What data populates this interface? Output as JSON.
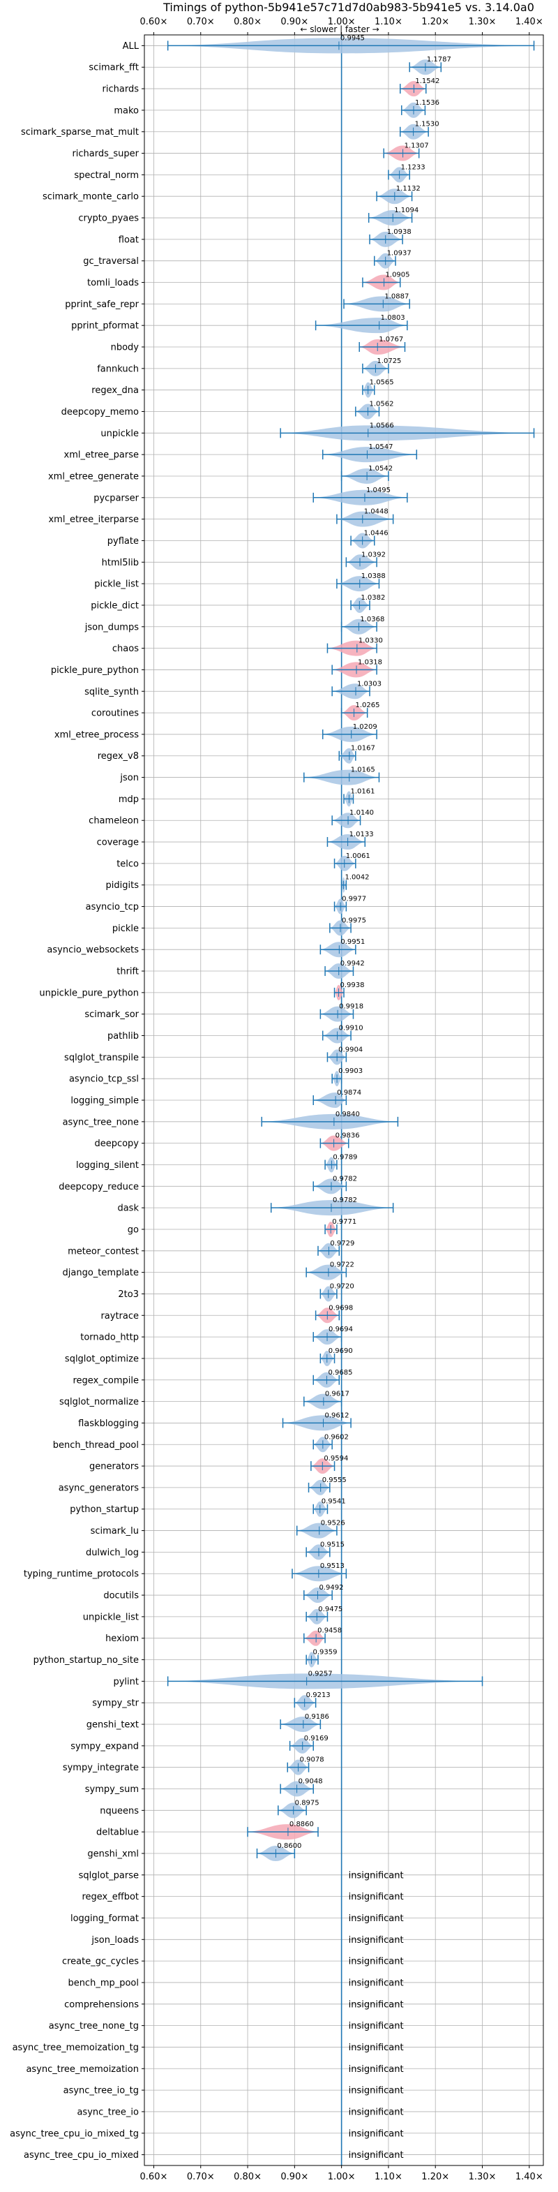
{
  "chart_data": {
    "type": "violin",
    "title": "Timings of python-5b941e57c71d7d0ab983-5b941e5 vs. 3.14.0a0",
    "direction_label": "← slower | faster →",
    "xlim": [
      0.58,
      1.43
    ],
    "xticks": [
      0.6,
      0.7,
      0.8,
      0.9,
      1.0,
      1.1,
      1.2,
      1.3,
      1.4
    ],
    "xtick_labels": [
      "0.60×",
      "0.70×",
      "0.80×",
      "0.90×",
      "1.00×",
      "1.10×",
      "1.20×",
      "1.30×",
      "1.40×"
    ],
    "reference_line": 1.0,
    "insignificant_text": "insignificant",
    "colors": {
      "normal": "#a8c6e4",
      "highlight": "#f4a7b4",
      "line": "#1f77b4",
      "grid": "#b0b0b0"
    },
    "benchmarks": [
      {
        "name": "ALL",
        "value": 0.9945,
        "label": "0.9945",
        "min": 0.63,
        "max": 1.41,
        "hl": false
      },
      {
        "name": "scimark_fft",
        "value": 1.1787,
        "label": "1.1787",
        "min": 1.145,
        "max": 1.212,
        "hl": false
      },
      {
        "name": "richards",
        "value": 1.1542,
        "label": "1.1542",
        "min": 1.125,
        "max": 1.18,
        "hl": true
      },
      {
        "name": "mako",
        "value": 1.1536,
        "label": "1.1536",
        "min": 1.128,
        "max": 1.178,
        "hl": false
      },
      {
        "name": "scimark_sparse_mat_mult",
        "value": 1.153,
        "label": "1.1530",
        "min": 1.125,
        "max": 1.185,
        "hl": false
      },
      {
        "name": "richards_super",
        "value": 1.1307,
        "label": "1.1307",
        "min": 1.09,
        "max": 1.165,
        "hl": true
      },
      {
        "name": "spectral_norm",
        "value": 1.1233,
        "label": "1.1233",
        "min": 1.1,
        "max": 1.145,
        "hl": false
      },
      {
        "name": "scimark_monte_carlo",
        "value": 1.1132,
        "label": "1.1132",
        "min": 1.075,
        "max": 1.15,
        "hl": false
      },
      {
        "name": "crypto_pyaes",
        "value": 1.1094,
        "label": "1.1094",
        "min": 1.058,
        "max": 1.15,
        "hl": false
      },
      {
        "name": "float",
        "value": 1.0938,
        "label": "1.0938",
        "min": 1.06,
        "max": 1.13,
        "hl": false
      },
      {
        "name": "gc_traversal",
        "value": 1.0937,
        "label": "1.0937",
        "min": 1.07,
        "max": 1.115,
        "hl": false
      },
      {
        "name": "tomli_loads",
        "value": 1.0905,
        "label": "1.0905",
        "min": 1.045,
        "max": 1.125,
        "hl": true
      },
      {
        "name": "pprint_safe_repr",
        "value": 1.0887,
        "label": "1.0887",
        "min": 1.005,
        "max": 1.145,
        "hl": false
      },
      {
        "name": "pprint_pformat",
        "value": 1.0803,
        "label": "1.0803",
        "min": 0.945,
        "max": 1.14,
        "hl": false
      },
      {
        "name": "nbody",
        "value": 1.0767,
        "label": "1.0767",
        "min": 1.038,
        "max": 1.135,
        "hl": true
      },
      {
        "name": "fannkuch",
        "value": 1.0725,
        "label": "1.0725",
        "min": 1.045,
        "max": 1.1,
        "hl": false
      },
      {
        "name": "regex_dna",
        "value": 1.0565,
        "label": "1.0565",
        "min": 1.045,
        "max": 1.07,
        "hl": false
      },
      {
        "name": "deepcopy_memo",
        "value": 1.0562,
        "label": "1.0562",
        "min": 1.03,
        "max": 1.08,
        "hl": false
      },
      {
        "name": "unpickle",
        "value": 1.0566,
        "label": "1.0566",
        "min": 0.87,
        "max": 1.41,
        "hl": false
      },
      {
        "name": "xml_etree_parse",
        "value": 1.0547,
        "label": "1.0547",
        "min": 0.96,
        "max": 1.16,
        "hl": false
      },
      {
        "name": "xml_etree_generate",
        "value": 1.0542,
        "label": "1.0542",
        "min": 1.0,
        "max": 1.1,
        "hl": false
      },
      {
        "name": "pycparser",
        "value": 1.0495,
        "label": "1.0495",
        "min": 0.94,
        "max": 1.14,
        "hl": false
      },
      {
        "name": "xml_etree_iterparse",
        "value": 1.0448,
        "label": "1.0448",
        "min": 0.99,
        "max": 1.11,
        "hl": false
      },
      {
        "name": "pyflate",
        "value": 1.0446,
        "label": "1.0446",
        "min": 1.02,
        "max": 1.07,
        "hl": false
      },
      {
        "name": "html5lib",
        "value": 1.0392,
        "label": "1.0392",
        "min": 1.01,
        "max": 1.075,
        "hl": false
      },
      {
        "name": "pickle_list",
        "value": 1.0388,
        "label": "1.0388",
        "min": 0.99,
        "max": 1.08,
        "hl": false
      },
      {
        "name": "pickle_dict",
        "value": 1.0382,
        "label": "1.0382",
        "min": 1.02,
        "max": 1.06,
        "hl": false
      },
      {
        "name": "json_dumps",
        "value": 1.0368,
        "label": "1.0368",
        "min": 1.0,
        "max": 1.075,
        "hl": false
      },
      {
        "name": "chaos",
        "value": 1.033,
        "label": "1.0330",
        "min": 0.97,
        "max": 1.075,
        "hl": true
      },
      {
        "name": "pickle_pure_python",
        "value": 1.0318,
        "label": "1.0318",
        "min": 0.98,
        "max": 1.075,
        "hl": true
      },
      {
        "name": "sqlite_synth",
        "value": 1.0303,
        "label": "1.0303",
        "min": 0.98,
        "max": 1.06,
        "hl": false
      },
      {
        "name": "coroutines",
        "value": 1.0265,
        "label": "1.0265",
        "min": 1.0,
        "max": 1.055,
        "hl": true
      },
      {
        "name": "xml_etree_process",
        "value": 1.0209,
        "label": "1.0209",
        "min": 0.96,
        "max": 1.075,
        "hl": false
      },
      {
        "name": "regex_v8",
        "value": 1.0167,
        "label": "1.0167",
        "min": 0.995,
        "max": 1.03,
        "hl": false
      },
      {
        "name": "json",
        "value": 1.0165,
        "label": "1.0165",
        "min": 0.92,
        "max": 1.08,
        "hl": false
      },
      {
        "name": "mdp",
        "value": 1.0161,
        "label": "1.0161",
        "min": 1.005,
        "max": 1.025,
        "hl": false
      },
      {
        "name": "chameleon",
        "value": 1.014,
        "label": "1.0140",
        "min": 0.98,
        "max": 1.04,
        "hl": false
      },
      {
        "name": "coverage",
        "value": 1.0133,
        "label": "1.0133",
        "min": 0.97,
        "max": 1.05,
        "hl": false
      },
      {
        "name": "telco",
        "value": 1.0061,
        "label": "1.0061",
        "min": 0.985,
        "max": 1.03,
        "hl": false
      },
      {
        "name": "pidigits",
        "value": 1.0042,
        "label": "1.0042",
        "min": 1.0,
        "max": 1.01,
        "hl": false
      },
      {
        "name": "asyncio_tcp",
        "value": 0.9977,
        "label": "0.9977",
        "min": 0.985,
        "max": 1.01,
        "hl": false
      },
      {
        "name": "pickle",
        "value": 0.9975,
        "label": "0.9975",
        "min": 0.975,
        "max": 1.02,
        "hl": false
      },
      {
        "name": "asyncio_websockets",
        "value": 0.9951,
        "label": "0.9951",
        "min": 0.955,
        "max": 1.03,
        "hl": false
      },
      {
        "name": "thrift",
        "value": 0.9942,
        "label": "0.9942",
        "min": 0.965,
        "max": 1.025,
        "hl": false
      },
      {
        "name": "unpickle_pure_python",
        "value": 0.9938,
        "label": "0.9938",
        "min": 0.985,
        "max": 1.005,
        "hl": true
      },
      {
        "name": "scimark_sor",
        "value": 0.9918,
        "label": "0.9918",
        "min": 0.955,
        "max": 1.025,
        "hl": false
      },
      {
        "name": "pathlib",
        "value": 0.991,
        "label": "0.9910",
        "min": 0.96,
        "max": 1.02,
        "hl": false
      },
      {
        "name": "sqlglot_transpile",
        "value": 0.9904,
        "label": "0.9904",
        "min": 0.97,
        "max": 1.01,
        "hl": false
      },
      {
        "name": "asyncio_tcp_ssl",
        "value": 0.9903,
        "label": "0.9903",
        "min": 0.98,
        "max": 1.0,
        "hl": false
      },
      {
        "name": "logging_simple",
        "value": 0.9874,
        "label": "0.9874",
        "min": 0.94,
        "max": 1.01,
        "hl": false
      },
      {
        "name": "async_tree_none",
        "value": 0.984,
        "label": "0.9840",
        "min": 0.83,
        "max": 1.12,
        "hl": false
      },
      {
        "name": "deepcopy",
        "value": 0.9836,
        "label": "0.9836",
        "min": 0.955,
        "max": 1.015,
        "hl": true
      },
      {
        "name": "logging_silent",
        "value": 0.9789,
        "label": "0.9789",
        "min": 0.965,
        "max": 0.99,
        "hl": false
      },
      {
        "name": "deepcopy_reduce",
        "value": 0.9782,
        "label": "0.9782",
        "min": 0.94,
        "max": 1.01,
        "hl": false
      },
      {
        "name": "dask",
        "value": 0.9782,
        "label": "0.9782",
        "min": 0.85,
        "max": 1.11,
        "hl": false
      },
      {
        "name": "go",
        "value": 0.9771,
        "label": "0.9771",
        "min": 0.965,
        "max": 0.99,
        "hl": true
      },
      {
        "name": "meteor_contest",
        "value": 0.9729,
        "label": "0.9729",
        "min": 0.95,
        "max": 0.995,
        "hl": false
      },
      {
        "name": "django_template",
        "value": 0.9722,
        "label": "0.9722",
        "min": 0.925,
        "max": 1.01,
        "hl": false
      },
      {
        "name": "2to3",
        "value": 0.972,
        "label": "0.9720",
        "min": 0.955,
        "max": 0.99,
        "hl": false
      },
      {
        "name": "raytrace",
        "value": 0.9698,
        "label": "0.9698",
        "min": 0.945,
        "max": 0.995,
        "hl": true
      },
      {
        "name": "tornado_http",
        "value": 0.9694,
        "label": "0.9694",
        "min": 0.94,
        "max": 1.0,
        "hl": false
      },
      {
        "name": "sqlglot_optimize",
        "value": 0.969,
        "label": "0.9690",
        "min": 0.955,
        "max": 0.985,
        "hl": false
      },
      {
        "name": "regex_compile",
        "value": 0.9685,
        "label": "0.9685",
        "min": 0.94,
        "max": 0.995,
        "hl": false
      },
      {
        "name": "sqlglot_normalize",
        "value": 0.9617,
        "label": "0.9617",
        "min": 0.92,
        "max": 1.0,
        "hl": false
      },
      {
        "name": "flaskblogging",
        "value": 0.9612,
        "label": "0.9612",
        "min": 0.875,
        "max": 1.02,
        "hl": false
      },
      {
        "name": "bench_thread_pool",
        "value": 0.9602,
        "label": "0.9602",
        "min": 0.94,
        "max": 0.98,
        "hl": false
      },
      {
        "name": "generators",
        "value": 0.9594,
        "label": "0.9594",
        "min": 0.935,
        "max": 0.985,
        "hl": true
      },
      {
        "name": "async_generators",
        "value": 0.9555,
        "label": "0.9555",
        "min": 0.93,
        "max": 0.975,
        "hl": false
      },
      {
        "name": "python_startup",
        "value": 0.9541,
        "label": "0.9541",
        "min": 0.94,
        "max": 0.97,
        "hl": false
      },
      {
        "name": "scimark_lu",
        "value": 0.9526,
        "label": "0.9526",
        "min": 0.905,
        "max": 0.99,
        "hl": false
      },
      {
        "name": "dulwich_log",
        "value": 0.9515,
        "label": "0.9515",
        "min": 0.925,
        "max": 0.975,
        "hl": false
      },
      {
        "name": "typing_runtime_protocols",
        "value": 0.9513,
        "label": "0.9513",
        "min": 0.895,
        "max": 1.01,
        "hl": false
      },
      {
        "name": "docutils",
        "value": 0.9492,
        "label": "0.9492",
        "min": 0.92,
        "max": 0.98,
        "hl": false
      },
      {
        "name": "unpickle_list",
        "value": 0.9475,
        "label": "0.9475",
        "min": 0.925,
        "max": 0.97,
        "hl": false
      },
      {
        "name": "hexiom",
        "value": 0.9458,
        "label": "0.9458",
        "min": 0.92,
        "max": 0.965,
        "hl": true
      },
      {
        "name": "python_startup_no_site",
        "value": 0.9359,
        "label": "0.9359",
        "min": 0.925,
        "max": 0.95,
        "hl": false
      },
      {
        "name": "pylint",
        "value": 0.9257,
        "label": "0.9257",
        "min": 0.63,
        "max": 1.3,
        "hl": false
      },
      {
        "name": "sympy_str",
        "value": 0.9213,
        "label": "0.9213",
        "min": 0.9,
        "max": 0.945,
        "hl": false
      },
      {
        "name": "genshi_text",
        "value": 0.9186,
        "label": "0.9186",
        "min": 0.87,
        "max": 0.955,
        "hl": false
      },
      {
        "name": "sympy_expand",
        "value": 0.9169,
        "label": "0.9169",
        "min": 0.89,
        "max": 0.94,
        "hl": false
      },
      {
        "name": "sympy_integrate",
        "value": 0.9078,
        "label": "0.9078",
        "min": 0.885,
        "max": 0.93,
        "hl": false
      },
      {
        "name": "sympy_sum",
        "value": 0.9048,
        "label": "0.9048",
        "min": 0.87,
        "max": 0.94,
        "hl": false
      },
      {
        "name": "nqueens",
        "value": 0.8975,
        "label": "0.8975",
        "min": 0.865,
        "max": 0.925,
        "hl": false
      },
      {
        "name": "deltablue",
        "value": 0.886,
        "label": "0.8860",
        "min": 0.8,
        "max": 0.95,
        "hl": true
      },
      {
        "name": "genshi_xml",
        "value": 0.86,
        "label": "0.8600",
        "min": 0.82,
        "max": 0.9,
        "hl": false
      },
      {
        "name": "sqlglot_parse",
        "insignificant": true
      },
      {
        "name": "regex_effbot",
        "insignificant": true
      },
      {
        "name": "logging_format",
        "insignificant": true
      },
      {
        "name": "json_loads",
        "insignificant": true
      },
      {
        "name": "create_gc_cycles",
        "insignificant": true
      },
      {
        "name": "bench_mp_pool",
        "insignificant": true
      },
      {
        "name": "comprehensions",
        "insignificant": true
      },
      {
        "name": "async_tree_none_tg",
        "insignificant": true
      },
      {
        "name": "async_tree_memoization_tg",
        "insignificant": true
      },
      {
        "name": "async_tree_memoization",
        "insignificant": true
      },
      {
        "name": "async_tree_io_tg",
        "insignificant": true
      },
      {
        "name": "async_tree_io",
        "insignificant": true
      },
      {
        "name": "async_tree_cpu_io_mixed_tg",
        "insignificant": true
      },
      {
        "name": "async_tree_cpu_io_mixed",
        "insignificant": true
      }
    ]
  }
}
